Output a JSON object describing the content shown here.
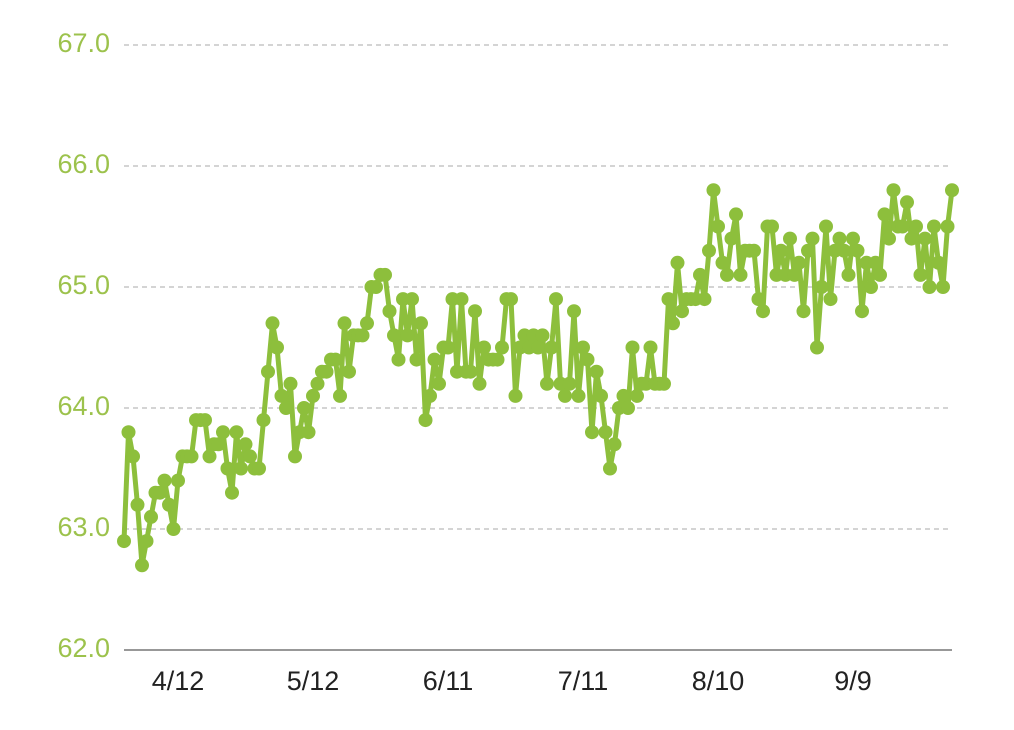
{
  "chart_data": {
    "type": "line",
    "categories": [
      null,
      null,
      null,
      null,
      null,
      null,
      null,
      null,
      null,
      null,
      null,
      null,
      "4/12",
      null,
      null,
      null,
      null,
      null,
      null,
      null,
      null,
      null,
      null,
      null,
      null,
      null,
      null,
      null,
      null,
      null,
      null,
      null,
      null,
      null,
      null,
      null,
      null,
      null,
      null,
      null,
      null,
      null,
      "5/12",
      null,
      null,
      null,
      null,
      null,
      null,
      null,
      null,
      null,
      null,
      null,
      null,
      null,
      null,
      null,
      null,
      null,
      null,
      null,
      null,
      null,
      null,
      null,
      null,
      null,
      null,
      null,
      null,
      null,
      "6/11",
      null,
      null,
      null,
      null,
      null,
      null,
      null,
      null,
      null,
      null,
      null,
      null,
      null,
      null,
      null,
      null,
      null,
      null,
      null,
      null,
      null,
      null,
      null,
      null,
      null,
      null,
      null,
      null,
      null,
      "7/11",
      null,
      null,
      null,
      null,
      null,
      null,
      null,
      null,
      null,
      null,
      null,
      null,
      null,
      null,
      null,
      null,
      null,
      null,
      null,
      null,
      null,
      null,
      null,
      null,
      null,
      null,
      null,
      null,
      null,
      "8/10",
      null,
      null,
      null,
      null,
      null,
      null,
      null,
      null,
      null,
      null,
      null,
      null,
      null,
      null,
      null,
      null,
      null,
      null,
      null,
      null,
      null,
      null,
      null,
      null,
      null,
      null,
      null,
      null,
      null,
      "9/9",
      null,
      null,
      null,
      null,
      null,
      null,
      null,
      null,
      null,
      null,
      null,
      null,
      null,
      null,
      null,
      null,
      null,
      null,
      null,
      null,
      null,
      null
    ],
    "values": [
      62.9,
      63.8,
      63.6,
      63.2,
      62.7,
      62.9,
      63.1,
      63.3,
      63.3,
      63.4,
      63.2,
      63.0,
      63.4,
      63.6,
      63.6,
      63.6,
      63.9,
      63.9,
      63.9,
      63.6,
      63.7,
      63.7,
      63.8,
      63.5,
      63.3,
      63.8,
      63.5,
      63.7,
      63.6,
      63.5,
      63.5,
      63.9,
      64.3,
      64.7,
      64.5,
      64.1,
      64.0,
      64.2,
      63.6,
      63.8,
      64.0,
      63.8,
      64.1,
      64.2,
      64.3,
      64.3,
      64.4,
      64.4,
      64.1,
      64.7,
      64.3,
      64.6,
      64.6,
      64.6,
      64.7,
      65.0,
      65.0,
      65.1,
      65.1,
      64.8,
      64.6,
      64.4,
      64.9,
      64.6,
      64.9,
      64.4,
      64.7,
      63.9,
      64.1,
      64.4,
      64.2,
      64.5,
      64.5,
      64.9,
      64.3,
      64.9,
      64.3,
      64.3,
      64.8,
      64.2,
      64.5,
      64.4,
      64.4,
      64.4,
      64.5,
      64.9,
      64.9,
      64.1,
      64.5,
      64.6,
      64.5,
      64.6,
      64.5,
      64.6,
      64.2,
      64.5,
      64.9,
      64.2,
      64.1,
      64.2,
      64.8,
      64.1,
      64.5,
      64.4,
      63.8,
      64.3,
      64.1,
      63.8,
      63.5,
      63.7,
      64.0,
      64.1,
      64.0,
      64.5,
      64.1,
      64.2,
      64.2,
      64.5,
      64.2,
      64.2,
      64.2,
      64.9,
      64.7,
      65.2,
      64.8,
      64.9,
      64.9,
      64.9,
      65.1,
      64.9,
      65.3,
      65.8,
      65.5,
      65.2,
      65.1,
      65.4,
      65.6,
      65.1,
      65.3,
      65.3,
      65.3,
      64.9,
      64.8,
      65.5,
      65.5,
      65.1,
      65.3,
      65.1,
      65.4,
      65.1,
      65.2,
      64.8,
      65.3,
      65.4,
      64.5,
      65.0,
      65.5,
      64.9,
      65.3,
      65.4,
      65.3,
      65.1,
      65.4,
      65.3,
      64.8,
      65.2,
      65.0,
      65.2,
      65.1,
      65.6,
      65.4,
      65.8,
      65.5,
      65.5,
      65.7,
      65.4,
      65.5,
      65.1,
      65.4,
      65.0,
      65.5,
      65.2,
      65.0,
      65.5,
      65.8
    ],
    "color": "#8dbf3c",
    "ylim": [
      62,
      67
    ],
    "yticks": [
      {
        "value": 62,
        "label": "62.0"
      },
      {
        "value": 63,
        "label": "63.0"
      },
      {
        "value": 64,
        "label": "64.0"
      },
      {
        "value": 65,
        "label": "65.0"
      },
      {
        "value": 66,
        "label": "66.0"
      },
      {
        "value": 67,
        "label": "67.0"
      }
    ],
    "grid": true
  }
}
